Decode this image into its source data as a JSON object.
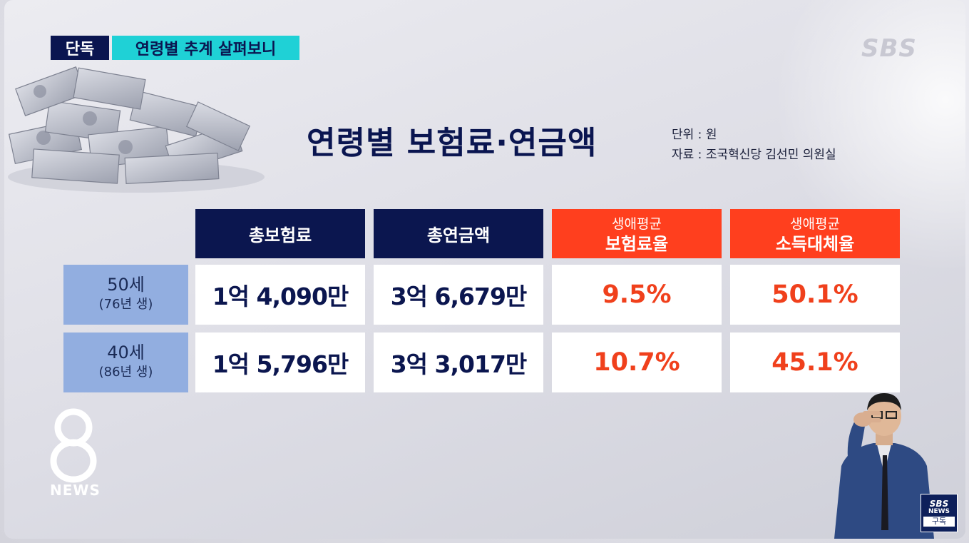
{
  "header": {
    "tag_exclusive": "단독",
    "tag_topic": "연령별 추계 살펴보니",
    "broadcaster_logo": "SBS"
  },
  "title": {
    "main": "연령별 보험료·연금액",
    "unit": "단위 : 원",
    "source": "자료 : 조국혁신당 김선민 의원실"
  },
  "table": {
    "headers": [
      {
        "line1": "총보험료",
        "line2": ""
      },
      {
        "line1": "총연금액",
        "line2": ""
      },
      {
        "line1": "생애평균",
        "line2": "보험료율"
      },
      {
        "line1": "생애평균",
        "line2": "소득대체율"
      }
    ],
    "rows": [
      {
        "age": "50세",
        "born": "(76년 생)",
        "total_premium": "1억 4,090만",
        "total_pension": "3억 6,679만",
        "premium_rate": "9.5%",
        "replacement_rate": "50.1%"
      },
      {
        "age": "40세",
        "born": "(86년 생)",
        "total_premium": "1억 5,796만",
        "total_pension": "3억 3,017만",
        "premium_rate": "10.7%",
        "replacement_rate": "45.1%"
      }
    ]
  },
  "colors": {
    "navy": "#0b164f",
    "accent_red": "#ff3f1e",
    "row_label_blue": "#92aee0",
    "topic_cyan": "#1fd1d6"
  },
  "footer": {
    "news_label": "NEWS",
    "subscribe_badge_top": "SBS",
    "subscribe_badge_mid": "NEWS",
    "subscribe_badge_bottom": "구독"
  }
}
